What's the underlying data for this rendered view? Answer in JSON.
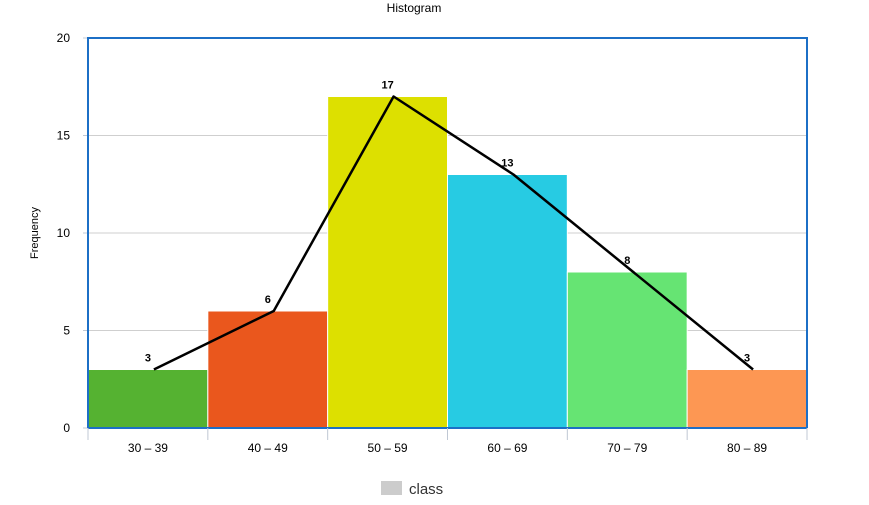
{
  "chart_data": {
    "type": "bar",
    "title": "Histogram",
    "xlabel": "",
    "ylabel": "Frequency",
    "ylim": [
      0,
      20
    ],
    "yticks": [
      0,
      5,
      10,
      15,
      20
    ],
    "categories": [
      "30 – 39",
      "40 – 49",
      "50 – 59",
      "60 – 69",
      "70 – 79",
      "80 – 89"
    ],
    "series": [
      {
        "name": "class",
        "values": [
          3,
          6,
          17,
          13,
          8,
          3
        ],
        "colors": [
          "#55b231",
          "#ea571d",
          "#dde000",
          "#27cbe3",
          "#66e473",
          "#fd9753"
        ]
      }
    ],
    "frequency_polygon": {
      "values": [
        3,
        6,
        17,
        13,
        8,
        3
      ],
      "color": "#000000"
    },
    "grid": true,
    "legend": {
      "placement": "bottom-center",
      "entries": [
        {
          "label": "class",
          "color": "#cccccc"
        }
      ]
    },
    "plot_border_color": "#1c6fc6"
  }
}
